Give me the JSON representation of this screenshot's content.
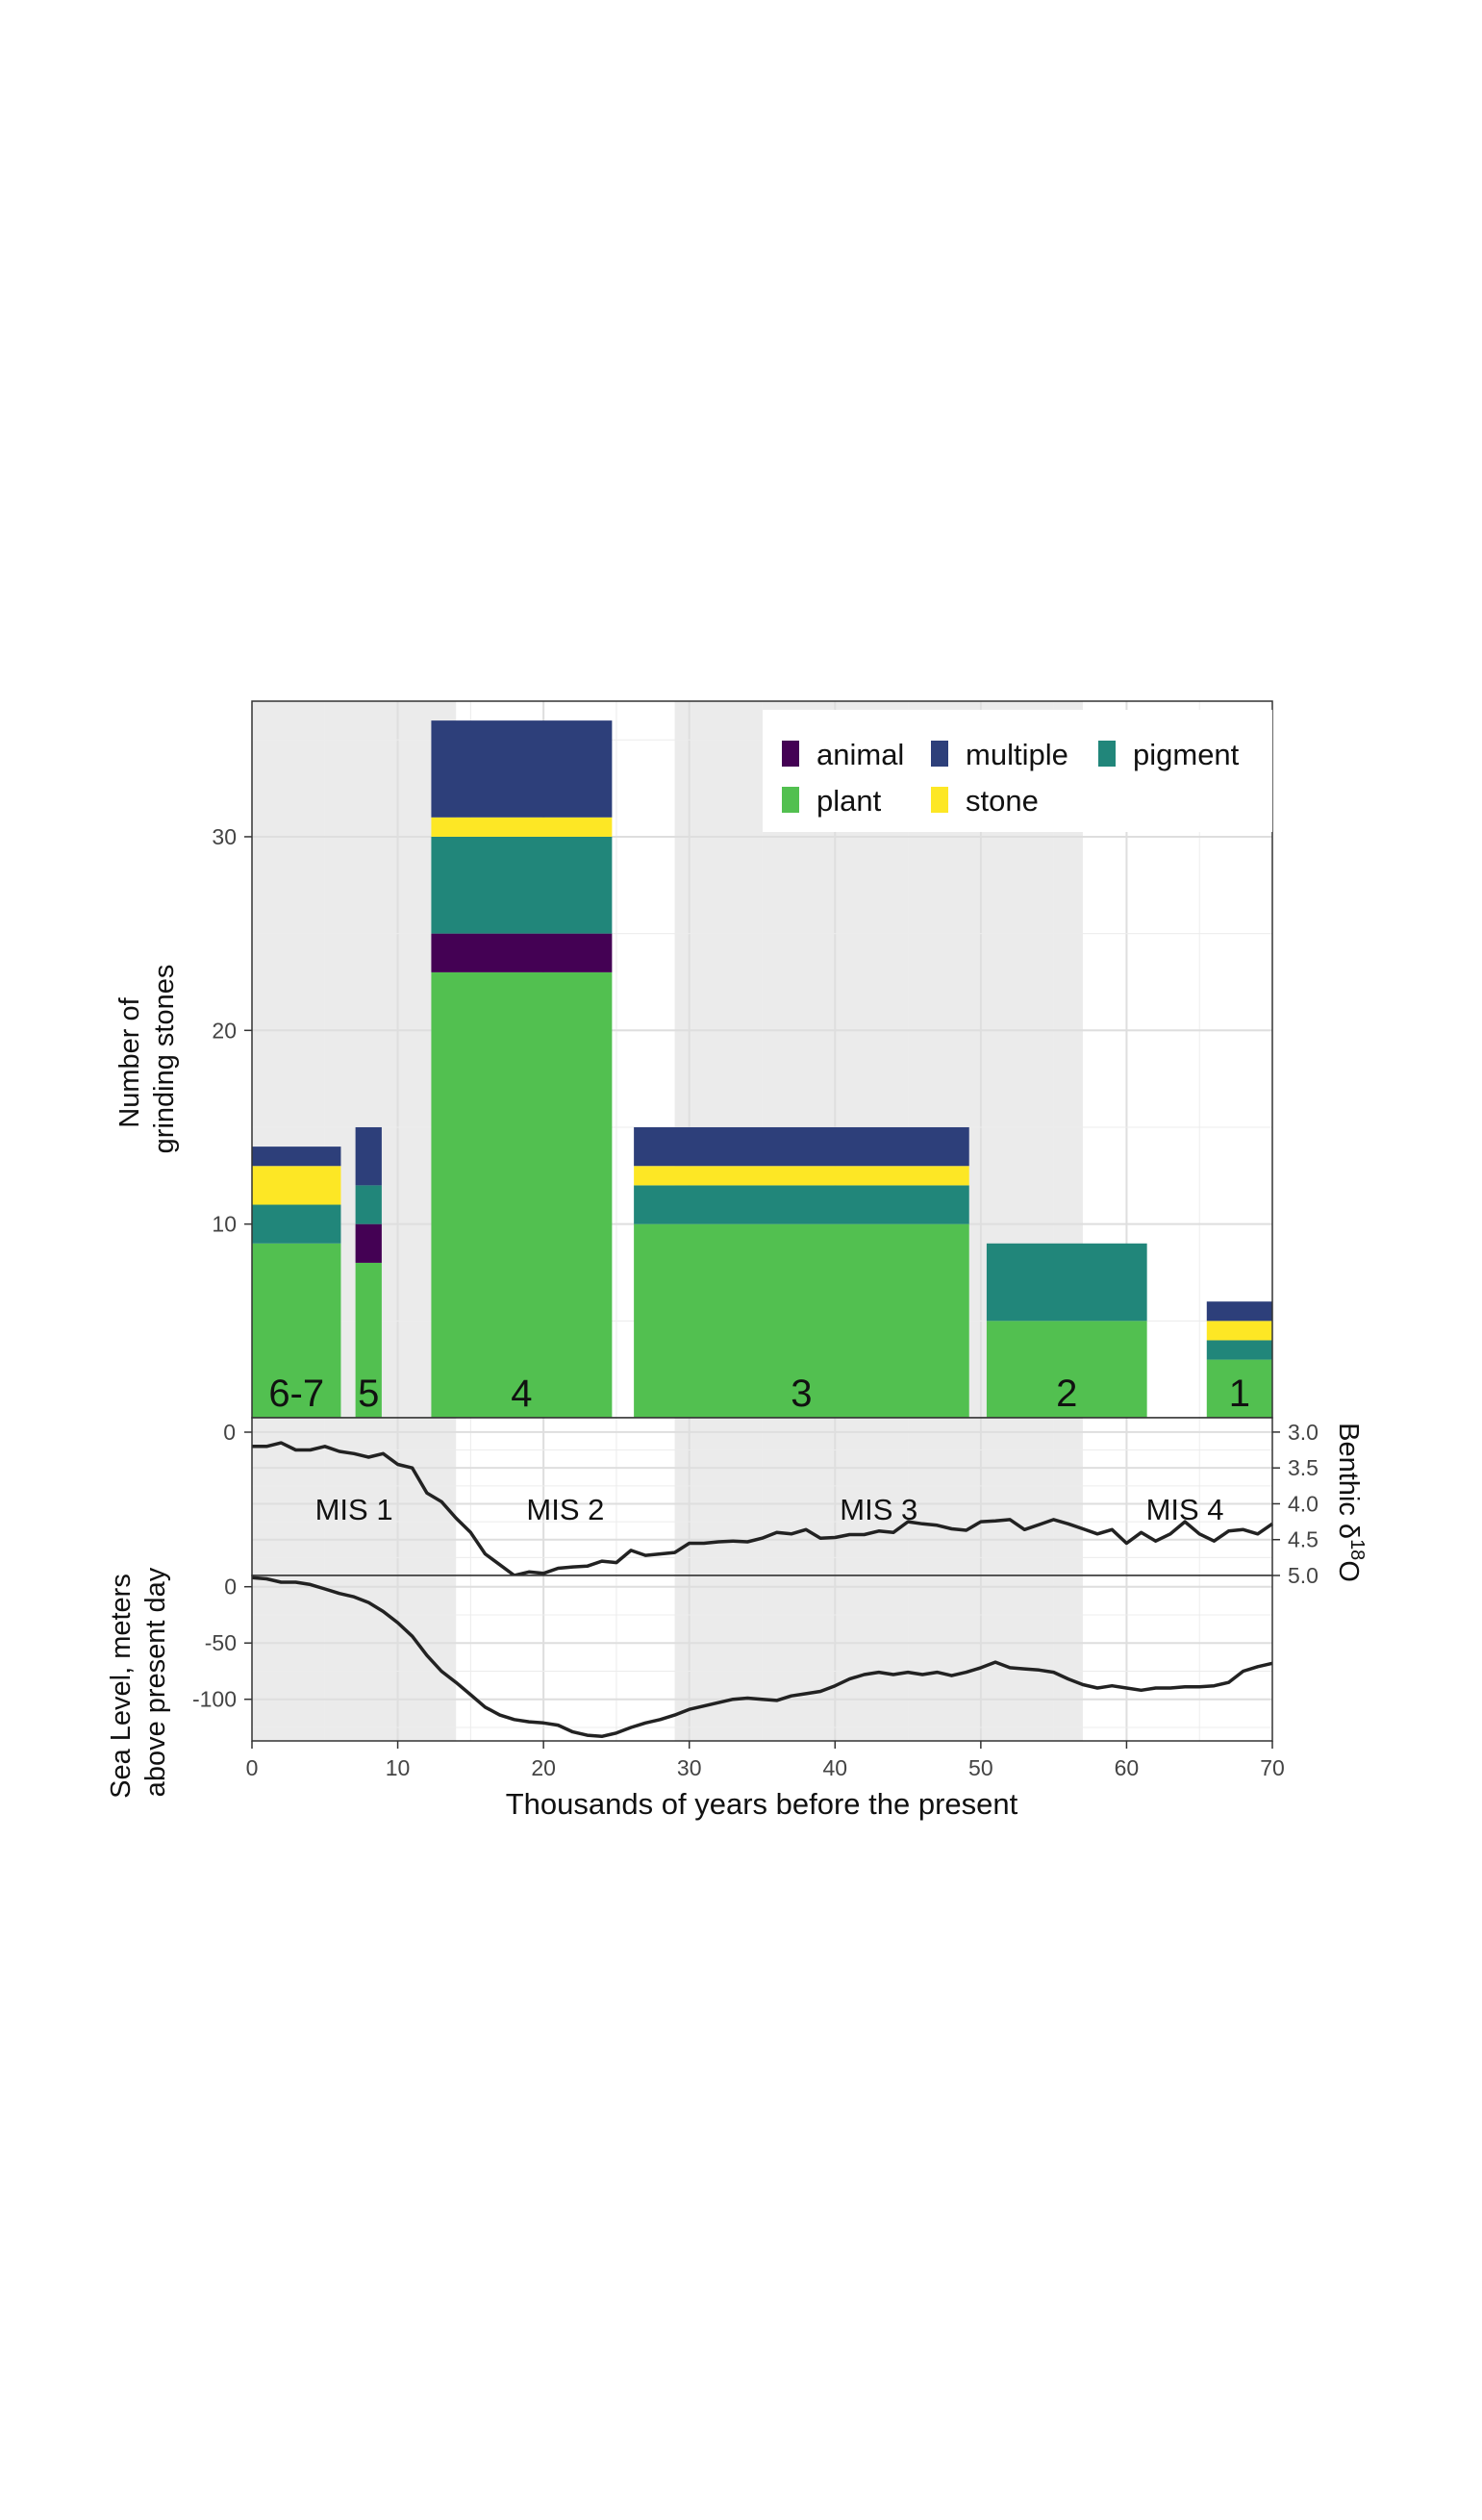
{
  "colors": {
    "animal": "#440154",
    "multiple": "#2d3f7a",
    "pigment": "#21867a",
    "plant": "#52c050",
    "stone": "#fde725",
    "band": "#ebebeb",
    "grid": "#e6e6e6",
    "line": "#222222"
  },
  "chart_data": [
    {
      "type": "bar",
      "stacked": true,
      "xlim": [
        0,
        70
      ],
      "ylim": [
        0,
        37
      ],
      "yticks": [
        "10",
        "20",
        "30"
      ],
      "ylabel_lines": [
        "Number of",
        "grinding stones"
      ],
      "legend": {
        "placement": "top-right",
        "items": [
          {
            "key": "animal",
            "label": "animal"
          },
          {
            "key": "multiple",
            "label": "multiple"
          },
          {
            "key": "pigment",
            "label": "pigment"
          },
          {
            "key": "plant",
            "label": "plant"
          },
          {
            "key": "stone",
            "label": "stone"
          }
        ]
      },
      "stack_order": [
        "plant",
        "animal",
        "pigment",
        "stone",
        "multiple"
      ],
      "bars": [
        {
          "label": "6-7",
          "x0": 0,
          "x1": 6.1,
          "plant": 9,
          "animal": 0,
          "pigment": 2,
          "stone": 2,
          "multiple": 1
        },
        {
          "label": "5",
          "x0": 7.1,
          "x1": 8.9,
          "plant": 8,
          "animal": 2,
          "pigment": 2,
          "stone": 0,
          "multiple": 3
        },
        {
          "label": "4",
          "x0": 12.3,
          "x1": 24.7,
          "plant": 23,
          "animal": 2,
          "pigment": 5,
          "stone": 1,
          "multiple": 5
        },
        {
          "label": "3",
          "x0": 26.2,
          "x1": 49.2,
          "plant": 10,
          "animal": 0,
          "pigment": 2,
          "stone": 1,
          "multiple": 2
        },
        {
          "label": "2",
          "x0": 50.4,
          "x1": 61.4,
          "plant": 5,
          "animal": 0,
          "pigment": 4,
          "stone": 0,
          "multiple": 0
        },
        {
          "label": "1",
          "x0": 65.5,
          "x1": 70,
          "plant": 3,
          "animal": 0,
          "pigment": 1,
          "stone": 1,
          "multiple": 1
        }
      ]
    },
    {
      "type": "line",
      "name": "Benthic δ18O",
      "ylabel": "Benthic δ",
      "ylabel_sup": "18",
      "ylabel_suffix": "O",
      "yaxis_reversed": true,
      "ylim": [
        2.8,
        5.0
      ],
      "yticks": [
        "3.0",
        "3.5",
        "4.0",
        "4.5",
        "5.0"
      ],
      "left_tick": "0",
      "mis_labels": [
        {
          "text": "MIS 1",
          "x": 7
        },
        {
          "text": "MIS 2",
          "x": 21.5
        },
        {
          "text": "MIS 3",
          "x": 43
        },
        {
          "text": "MIS 4",
          "x": 64
        }
      ],
      "x": [
        0,
        1,
        2,
        3,
        4,
        5,
        6,
        7,
        8,
        9,
        10,
        11,
        12,
        13,
        14,
        15,
        16,
        17,
        18,
        19,
        20,
        21,
        22,
        23,
        24,
        25,
        26,
        27,
        28,
        29,
        30,
        31,
        32,
        33,
        34,
        35,
        36,
        37,
        38,
        39,
        40,
        41,
        42,
        43,
        44,
        45,
        46,
        47,
        48,
        49,
        50,
        51,
        52,
        53,
        54,
        55,
        56,
        57,
        58,
        59,
        60,
        61,
        62,
        63,
        64,
        65,
        66,
        67,
        68,
        69,
        70
      ],
      "y": [
        3.2,
        3.2,
        3.15,
        3.25,
        3.25,
        3.2,
        3.27,
        3.3,
        3.35,
        3.3,
        3.45,
        3.5,
        3.85,
        3.97,
        4.2,
        4.4,
        4.7,
        4.85,
        5.0,
        4.95,
        4.97,
        4.9,
        4.88,
        4.87,
        4.8,
        4.82,
        4.65,
        4.72,
        4.7,
        4.68,
        4.55,
        4.55,
        4.53,
        4.52,
        4.53,
        4.48,
        4.4,
        4.42,
        4.36,
        4.48,
        4.47,
        4.43,
        4.43,
        4.38,
        4.4,
        4.25,
        4.28,
        4.3,
        4.35,
        4.37,
        4.25,
        4.24,
        4.22,
        4.36,
        4.29,
        4.22,
        4.28,
        4.35,
        4.42,
        4.36,
        4.55,
        4.4,
        4.52,
        4.42,
        4.25,
        4.42,
        4.52,
        4.38,
        4.36,
        4.42,
        4.28
      ]
    },
    {
      "type": "line",
      "name": "Sea Level",
      "ylabel_lines": [
        "Sea Level, meters",
        "above present day"
      ],
      "ylim": [
        -137,
        10
      ],
      "yticks": [
        "0",
        "-50",
        "-100"
      ],
      "xlabel": "Thousands of years before the present",
      "xticks": [
        "0",
        "10",
        "20",
        "30",
        "40",
        "50",
        "60",
        "70"
      ],
      "x": [
        0,
        1,
        2,
        3,
        4,
        5,
        6,
        7,
        8,
        9,
        10,
        11,
        12,
        13,
        14,
        15,
        16,
        17,
        18,
        19,
        20,
        21,
        22,
        23,
        24,
        25,
        26,
        27,
        28,
        29,
        30,
        31,
        32,
        33,
        34,
        35,
        36,
        37,
        38,
        39,
        40,
        41,
        42,
        43,
        44,
        45,
        46,
        47,
        48,
        49,
        50,
        51,
        52,
        53,
        54,
        55,
        56,
        57,
        58,
        59,
        60,
        61,
        62,
        63,
        64,
        65,
        66,
        67,
        68,
        69,
        70
      ],
      "y": [
        8,
        7,
        4,
        4,
        2,
        -2,
        -6,
        -9,
        -14,
        -22,
        -32,
        -44,
        -61,
        -75,
        -85,
        -96,
        -107,
        -114,
        -118,
        -120,
        -121,
        -123,
        -129,
        -132,
        -133,
        -130,
        -125,
        -121,
        -118,
        -114,
        -109,
        -106,
        -103,
        -100,
        -99,
        -100,
        -101,
        -97,
        -95,
        -93,
        -88,
        -82,
        -78,
        -76,
        -78,
        -76,
        -78,
        -76,
        -79,
        -76,
        -72,
        -67,
        -72,
        -73,
        -74,
        -76,
        -82,
        -87,
        -90,
        -88,
        -90,
        -92,
        -90,
        -90,
        -89,
        -89,
        -88,
        -85,
        -75,
        -71,
        -68
      ]
    }
  ]
}
